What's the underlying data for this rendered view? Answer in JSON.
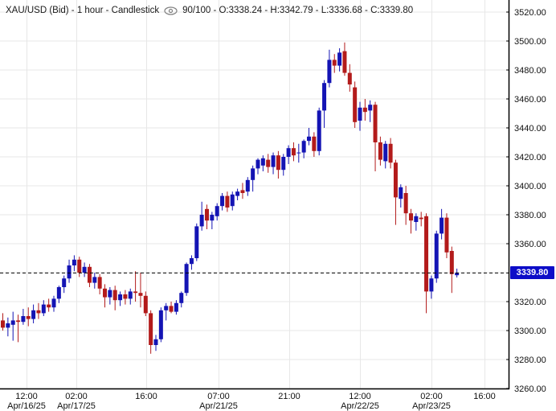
{
  "header": {
    "instrument": "XAU/USD (Bid) - 1 hour - Candlestick",
    "summary": "90/100 - O:3338.24 - H:3342.79 - L:3336.68 - C:3339.80",
    "eye_icon": "eye-icon"
  },
  "price_marker": {
    "label": "3339.80",
    "value": 3339.8,
    "bg": "#0D0DC8",
    "text_color": "#FFFFFF"
  },
  "colors": {
    "up": "#1414B4",
    "down": "#B31B1B",
    "grid": "#E7E7E7",
    "axis": "#000000",
    "background": "#FFFFFF",
    "dashed_line": "#000000",
    "label_text": "#111111",
    "title_text": "#1a1a1a",
    "eye_icon": "#808080"
  },
  "chart_data": {
    "type": "candlestick",
    "symbol": "XAU/USD",
    "quote_type": "Bid",
    "interval": "1 hour",
    "candles_shown": 90,
    "candles_total": 100,
    "last_candle": {
      "open": 3338.24,
      "high": 3342.79,
      "low": 3336.68,
      "close": 3339.8
    },
    "current_price": 3339.8,
    "y_axis": {
      "min": 3260,
      "max": 3520,
      "step": 20,
      "labels": [
        "3520.00",
        "3500.00",
        "3480.00",
        "3460.00",
        "3440.00",
        "3420.00",
        "3400.00",
        "3380.00",
        "3360.00",
        "3320.00",
        "3300.00",
        "3280.00",
        "3260.00"
      ],
      "label_values": [
        3520,
        3500,
        3480,
        3460,
        3440,
        3420,
        3400,
        3380,
        3360,
        3320,
        3300,
        3280,
        3260
      ],
      "current_price_label": "3339.80"
    },
    "x_axis": {
      "ticks": [
        {
          "frac": 0.0521,
          "time": "12:00",
          "date": "Apr/16/25"
        },
        {
          "frac": 0.1501,
          "time": "02:00",
          "date": "Apr/17/25"
        },
        {
          "frac": 0.2875,
          "time": "16:00",
          "date": ""
        },
        {
          "frac": 0.4297,
          "time": "07:00",
          "date": "Apr/21/25"
        },
        {
          "frac": 0.5687,
          "time": "21:00",
          "date": ""
        },
        {
          "frac": 0.7077,
          "time": "12:00",
          "date": "Apr/22/25"
        },
        {
          "frac": 0.8483,
          "time": "02:00",
          "date": "Apr/23/25"
        },
        {
          "frac": 0.9526,
          "time": "16:00",
          "date": ""
        }
      ]
    },
    "candles_format": [
      "open",
      "high",
      "low",
      "close"
    ],
    "candles": [
      [
        3307,
        3312,
        3300,
        3302
      ],
      [
        3302,
        3309,
        3296,
        3305
      ],
      [
        3304,
        3313,
        3293,
        3307
      ],
      [
        3307,
        3311,
        3292,
        3306
      ],
      [
        3306,
        3315,
        3304,
        3310
      ],
      [
        3310,
        3316,
        3303,
        3308
      ],
      [
        3308,
        3318,
        3305,
        3314
      ],
      [
        3314,
        3319,
        3308,
        3312
      ],
      [
        3312,
        3321,
        3310,
        3318
      ],
      [
        3318,
        3322,
        3313,
        3316
      ],
      [
        3316,
        3324,
        3313,
        3322
      ],
      [
        3322,
        3331,
        3319,
        3330
      ],
      [
        3330,
        3338,
        3326,
        3336
      ],
      [
        3336,
        3349,
        3333,
        3345
      ],
      [
        3345,
        3352,
        3341,
        3349
      ],
      [
        3349,
        3351,
        3337,
        3340
      ],
      [
        3340,
        3347,
        3337,
        3344
      ],
      [
        3344,
        3346,
        3330,
        3333
      ],
      [
        3333,
        3340,
        3329,
        3337
      ],
      [
        3337,
        3339,
        3325,
        3329
      ],
      [
        3329,
        3332,
        3316,
        3323
      ],
      [
        3323,
        3330,
        3318,
        3328
      ],
      [
        3328,
        3331,
        3314,
        3321
      ],
      [
        3321,
        3327,
        3317,
        3325
      ],
      [
        3325,
        3328,
        3318,
        3322
      ],
      [
        3322,
        3329,
        3318,
        3327
      ],
      [
        3327,
        3341,
        3320,
        3326
      ],
      [
        3326,
        3340,
        3316,
        3324
      ],
      [
        3324,
        3327,
        3310,
        3312
      ],
      [
        3312,
        3314,
        3284,
        3290
      ],
      [
        3290,
        3297,
        3286,
        3294
      ],
      [
        3294,
        3316,
        3292,
        3314
      ],
      [
        3314,
        3319,
        3307,
        3317
      ],
      [
        3317,
        3320,
        3312,
        3313
      ],
      [
        3313,
        3321,
        3311,
        3319
      ],
      [
        3319,
        3327,
        3316,
        3326
      ],
      [
        3326,
        3347,
        3324,
        3346
      ],
      [
        3346,
        3352,
        3342,
        3350
      ],
      [
        3350,
        3374,
        3348,
        3372
      ],
      [
        3372,
        3389,
        3369,
        3380
      ],
      [
        3384,
        3387,
        3370,
        3376
      ],
      [
        3376,
        3382,
        3370,
        3380
      ],
      [
        3379,
        3388,
        3376,
        3386
      ],
      [
        3386,
        3395,
        3383,
        3393
      ],
      [
        3393,
        3396,
        3382,
        3385
      ],
      [
        3386,
        3396,
        3383,
        3394
      ],
      [
        3393,
        3398,
        3390,
        3396
      ],
      [
        3397,
        3402,
        3391,
        3395
      ],
      [
        3396,
        3406,
        3393,
        3404
      ],
      [
        3404,
        3414,
        3396,
        3412
      ],
      [
        3412,
        3419,
        3408,
        3418
      ],
      [
        3414,
        3421,
        3410,
        3419
      ],
      [
        3418,
        3422,
        3409,
        3413
      ],
      [
        3413,
        3423,
        3408,
        3421
      ],
      [
        3421,
        3424,
        3405,
        3411
      ],
      [
        3411,
        3422,
        3407,
        3420
      ],
      [
        3420,
        3428,
        3415,
        3426
      ],
      [
        3426,
        3430,
        3417,
        3421
      ],
      [
        3423,
        3429,
        3416,
        3423
      ],
      [
        3423,
        3432,
        3419,
        3431
      ],
      [
        3431,
        3440,
        3428,
        3434
      ],
      [
        3434,
        3437,
        3420,
        3424
      ],
      [
        3424,
        3454,
        3421,
        3452
      ],
      [
        3452,
        3473,
        3440,
        3471
      ],
      [
        3471,
        3494,
        3468,
        3487
      ],
      [
        3487,
        3491,
        3478,
        3483
      ],
      [
        3483,
        3495,
        3479,
        3492
      ],
      [
        3493,
        3499,
        3476,
        3478
      ],
      [
        3478,
        3484,
        3465,
        3470
      ],
      [
        3468,
        3472,
        3440,
        3444
      ],
      [
        3445,
        3458,
        3438,
        3454
      ],
      [
        3454,
        3460,
        3445,
        3451
      ],
      [
        3452,
        3459,
        3444,
        3456
      ],
      [
        3456,
        3458,
        3410,
        3430
      ],
      [
        3430,
        3434,
        3414,
        3418
      ],
      [
        3417,
        3431,
        3412,
        3429
      ],
      [
        3429,
        3433,
        3412,
        3416
      ],
      [
        3416,
        3418,
        3373,
        3392
      ],
      [
        3391,
        3401,
        3385,
        3399
      ],
      [
        3395,
        3400,
        3373,
        3381
      ],
      [
        3381,
        3384,
        3367,
        3376
      ],
      [
        3375,
        3381,
        3369,
        3379
      ],
      [
        3378,
        3382,
        3372,
        3377
      ],
      [
        3379,
        3381,
        3312,
        3327
      ],
      [
        3327,
        3338,
        3322,
        3336
      ],
      [
        3336,
        3369,
        3333,
        3367
      ],
      [
        3367,
        3384,
        3363,
        3378
      ],
      [
        3378,
        3381,
        3350,
        3354
      ],
      [
        3355,
        3358,
        3326,
        3339
      ],
      [
        3338.24,
        3342.79,
        3336.68,
        3339.8
      ]
    ]
  }
}
